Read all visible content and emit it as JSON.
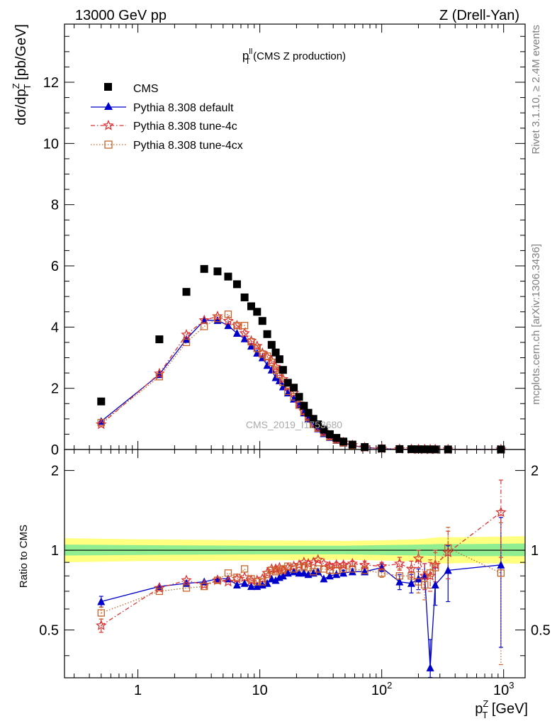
{
  "header": {
    "left": "13000 GeV pp",
    "right": "Z (Drell-Yan)"
  },
  "side_text": {
    "rivet": "Rivet 3.1.10, ≥ 2.4M events",
    "mcplots": "mcplots.cern.ch [arXiv:1306.3436]"
  },
  "watermark": "CMS_2019_I1753680",
  "colors": {
    "data": "#000000",
    "default": "#0000cc",
    "tune4c": "#dd3333",
    "tune4cx": "#c8642a",
    "band_outer": "#ffff80",
    "band_inner": "#90ee90"
  },
  "chart_data": [
    {
      "type": "scatter",
      "title_main": "p",
      "title_sup": "ll",
      "title_sub": "T",
      "title_suffix": " (CMS Z production)",
      "ylabel": "dσ/dp",
      "ylabel_sup": "Z",
      "ylabel_sub": "T",
      "ylabel_suffix": " [pb/GeV]",
      "xscale": "log",
      "xlim": [
        0.25,
        1500
      ],
      "ylim": [
        0,
        13.9
      ],
      "yticks": [
        0,
        2,
        4,
        6,
        8,
        10,
        12
      ],
      "yticklabels": [
        "0",
        "2",
        "4",
        "6",
        "8",
        "10",
        "12"
      ],
      "legend_position": "top-left",
      "legend": [
        "CMS",
        "Pythia 8.308 default",
        "Pythia 8.308 tune-4c",
        "Pythia 8.308 tune-4cx"
      ],
      "x": [
        0.5,
        1.5,
        2.5,
        3.5,
        4.5,
        5.5,
        6.5,
        7.5,
        8.5,
        9.5,
        10.5,
        11.5,
        12.5,
        13.5,
        14.5,
        15.5,
        17,
        19,
        21,
        23,
        25,
        27.5,
        30,
        33.5,
        37.5,
        42.5,
        48.5,
        57.5,
        72.5,
        100,
        140,
        175,
        200,
        225,
        250,
        275,
        350,
        950
      ],
      "series": [
        {
          "name": "CMS",
          "marker": "square",
          "values": [
            1.57,
            3.6,
            5.15,
            5.9,
            5.82,
            5.65,
            5.4,
            4.97,
            4.68,
            4.5,
            4.2,
            3.77,
            3.42,
            3.17,
            2.95,
            2.6,
            2.18,
            2.02,
            1.72,
            1.43,
            1.2,
            1.0,
            0.82,
            0.65,
            0.5,
            0.38,
            0.26,
            0.16,
            0.08,
            0.032,
            0.014,
            0.009,
            0.007,
            0.005,
            0.004,
            0.003,
            0.0018,
            0.0003
          ]
        },
        {
          "name": "Pythia 8.308 default",
          "marker": "triangle",
          "values": [
            0.92,
            2.45,
            3.6,
            4.22,
            4.22,
            4.05,
            3.8,
            3.62,
            3.38,
            3.15,
            3.0,
            2.75,
            2.6,
            2.35,
            2.25,
            2.05,
            1.85,
            1.65,
            1.45,
            1.2,
            1.0,
            0.82,
            0.68,
            0.52,
            0.4,
            0.3,
            0.21,
            0.13,
            0.065,
            0.027,
            0.011,
            0.007,
            0.005,
            0.004,
            0.0015,
            0.0022,
            0.0015,
            0.00025
          ]
        },
        {
          "name": "Pythia 8.308 tune-4c",
          "marker": "star",
          "values": [
            0.82,
            2.48,
            3.75,
            4.22,
            4.35,
            4.2,
            4.05,
            3.8,
            3.55,
            3.38,
            3.15,
            3.02,
            2.9,
            2.7,
            2.5,
            2.3,
            2.05,
            1.85,
            1.5,
            1.25,
            1.07,
            0.85,
            0.72,
            0.58,
            0.43,
            0.33,
            0.23,
            0.14,
            0.07,
            0.028,
            0.012,
            0.008,
            0.006,
            0.0045,
            0.003,
            0.0028,
            0.0018,
            0.0004
          ]
        },
        {
          "name": "Pythia 8.308 tune-4cx",
          "marker": "open-square",
          "values": [
            0.88,
            2.38,
            3.5,
            4.02,
            4.28,
            4.42,
            4.05,
            4.05,
            3.52,
            3.3,
            3.12,
            3.05,
            2.85,
            2.6,
            2.45,
            2.2,
            1.9,
            1.72,
            1.45,
            1.25,
            1.05,
            0.82,
            0.7,
            0.55,
            0.42,
            0.31,
            0.22,
            0.13,
            0.065,
            0.026,
            0.011,
            0.007,
            0.0055,
            0.004,
            0.0032,
            0.0025,
            0.0018,
            0.00025
          ]
        }
      ]
    },
    {
      "type": "line",
      "ylabel": "Ratio to CMS",
      "xlabel_main": "p",
      "xlabel_sup": "Z",
      "xlabel_sub": "T",
      "xlabel_suffix": " [GeV]",
      "xscale": "log",
      "xlim": [
        0.25,
        1500
      ],
      "ylim": [
        0.33,
        2.4
      ],
      "yscale": "log",
      "yticks": [
        0.5,
        1,
        2
      ],
      "yticklabels": [
        "0.5",
        "1",
        "2"
      ],
      "xticks": [
        1,
        10,
        100,
        1000
      ],
      "xticklabels_base": [
        "1",
        "10",
        "10",
        "10"
      ],
      "xticklabels_exp": [
        "",
        "",
        "2",
        "3"
      ],
      "reference_line": 1,
      "band_outer": {
        "x": [
          0.25,
          1,
          10,
          50,
          100,
          200,
          300,
          500,
          1500
        ],
        "lo": [
          0.9,
          0.91,
          0.915,
          0.92,
          0.915,
          0.905,
          0.89,
          0.895,
          0.89
        ],
        "hi": [
          1.11,
          1.1,
          1.09,
          1.085,
          1.09,
          1.1,
          1.12,
          1.12,
          1.13
        ]
      },
      "band_inner": {
        "x": [
          0.25,
          1,
          10,
          50,
          100,
          200,
          300,
          500,
          1500
        ],
        "lo": [
          0.955,
          0.96,
          0.965,
          0.965,
          0.96,
          0.955,
          0.95,
          0.95,
          0.95
        ],
        "hi": [
          1.05,
          1.045,
          1.04,
          1.04,
          1.045,
          1.05,
          1.055,
          1.055,
          1.06
        ]
      },
      "x": [
        0.5,
        1.5,
        2.5,
        3.5,
        4.5,
        5.5,
        6.5,
        7.5,
        8.5,
        9.5,
        10.5,
        11.5,
        12.5,
        13.5,
        14.5,
        15.5,
        17,
        19,
        21,
        23,
        25,
        27.5,
        30,
        33.5,
        37.5,
        42.5,
        48.5,
        57.5,
        72.5,
        100,
        140,
        175,
        200,
        225,
        250,
        275,
        350,
        950
      ],
      "series": [
        {
          "name": "Pythia 8.308 default",
          "marker": "triangle",
          "values": [
            0.64,
            0.73,
            0.75,
            0.76,
            0.78,
            0.78,
            0.74,
            0.75,
            0.73,
            0.73,
            0.74,
            0.75,
            0.78,
            0.77,
            0.79,
            0.8,
            0.82,
            0.83,
            0.82,
            0.82,
            0.81,
            0.82,
            0.83,
            0.78,
            0.8,
            0.81,
            0.82,
            0.83,
            0.83,
            0.86,
            0.76,
            0.75,
            0.78,
            0.8,
            0.36,
            0.74,
            0.84,
            0.88
          ],
          "err": [
            0.03,
            0.01,
            0.01,
            0.01,
            0.01,
            0.01,
            0.01,
            0.01,
            0.01,
            0.01,
            0.01,
            0.01,
            0.01,
            0.01,
            0.01,
            0.01,
            0.01,
            0.01,
            0.01,
            0.01,
            0.01,
            0.01,
            0.01,
            0.01,
            0.01,
            0.01,
            0.02,
            0.02,
            0.02,
            0.03,
            0.05,
            0.06,
            0.07,
            0.09,
            0.1,
            0.12,
            0.2,
            0.45
          ]
        },
        {
          "name": "Pythia 8.308 tune-4c",
          "marker": "star",
          "values": [
            0.52,
            0.72,
            0.77,
            0.74,
            0.77,
            0.76,
            0.78,
            0.79,
            0.77,
            0.77,
            0.78,
            0.82,
            0.85,
            0.85,
            0.86,
            0.84,
            0.86,
            0.87,
            0.88,
            0.9,
            0.89,
            0.9,
            0.92,
            0.89,
            0.87,
            0.88,
            0.88,
            0.89,
            0.88,
            0.87,
            0.89,
            0.85,
            0.93,
            0.8,
            0.8,
            0.88,
            0.98,
            1.39
          ],
          "err": [
            0.03,
            0.01,
            0.01,
            0.01,
            0.01,
            0.01,
            0.01,
            0.01,
            0.01,
            0.01,
            0.01,
            0.01,
            0.01,
            0.01,
            0.01,
            0.01,
            0.01,
            0.01,
            0.01,
            0.01,
            0.01,
            0.01,
            0.01,
            0.01,
            0.02,
            0.02,
            0.02,
            0.02,
            0.03,
            0.03,
            0.05,
            0.06,
            0.07,
            0.09,
            0.1,
            0.12,
            0.2,
            0.45
          ]
        },
        {
          "name": "Pythia 8.308 tune-4cx",
          "marker": "open-square",
          "values": [
            0.58,
            0.7,
            0.72,
            0.73,
            0.77,
            0.82,
            0.79,
            0.85,
            0.78,
            0.76,
            0.76,
            0.81,
            0.84,
            0.83,
            0.84,
            0.85,
            0.87,
            0.85,
            0.86,
            0.87,
            0.86,
            0.83,
            0.85,
            0.85,
            0.84,
            0.84,
            0.85,
            0.85,
            0.84,
            0.82,
            0.8,
            0.8,
            0.76,
            0.74,
            0.82,
            0.86,
            1.02,
            0.82
          ],
          "err": [
            0.03,
            0.01,
            0.01,
            0.01,
            0.01,
            0.01,
            0.01,
            0.01,
            0.01,
            0.01,
            0.01,
            0.01,
            0.01,
            0.01,
            0.01,
            0.01,
            0.01,
            0.01,
            0.01,
            0.01,
            0.01,
            0.01,
            0.01,
            0.01,
            0.02,
            0.02,
            0.02,
            0.02,
            0.03,
            0.03,
            0.05,
            0.06,
            0.07,
            0.09,
            0.1,
            0.12,
            0.2,
            0.45
          ]
        }
      ]
    }
  ]
}
